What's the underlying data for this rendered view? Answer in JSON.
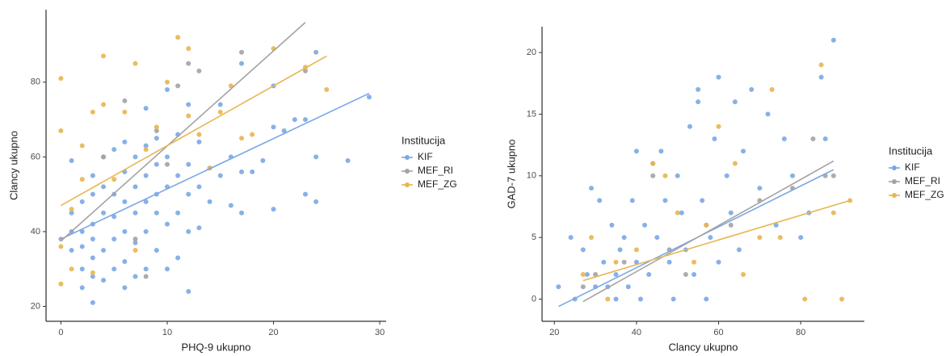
{
  "chart_data": [
    {
      "type": "scatter",
      "xlabel": "PHQ-9 ukupno",
      "ylabel": "Clancy ukupno",
      "legend_title": "Institucija",
      "legend": "right",
      "xlim": [
        -1.4,
        30.6
      ],
      "ylim": [
        16,
        99.4
      ],
      "xticks": [
        0,
        10,
        20,
        30
      ],
      "yticks": [
        20,
        40,
        60,
        80
      ],
      "series": [
        {
          "name": "KIF",
          "color": "#7ba7e6",
          "x": [
            1,
            1,
            1,
            1,
            2,
            2,
            2,
            2,
            2,
            3,
            3,
            3,
            3,
            3,
            3,
            3,
            4,
            4,
            4,
            4,
            4,
            5,
            5,
            5,
            5,
            5,
            6,
            6,
            6,
            6,
            6,
            6,
            7,
            7,
            7,
            7,
            7,
            8,
            8,
            8,
            8,
            8,
            8,
            9,
            9,
            9,
            9,
            9,
            10,
            10,
            10,
            10,
            10,
            11,
            11,
            11,
            11,
            12,
            12,
            12,
            12,
            12,
            13,
            13,
            13,
            14,
            14,
            15,
            15,
            16,
            16,
            17,
            17,
            17,
            18,
            19,
            20,
            20,
            20,
            21,
            22,
            23,
            23,
            24,
            24,
            24,
            27,
            29
          ],
          "values": [
            59,
            40,
            35,
            45,
            48,
            40,
            30,
            25,
            36,
            21,
            28,
            33,
            38,
            42,
            50,
            55,
            27,
            35,
            45,
            52,
            60,
            30,
            38,
            44,
            50,
            62,
            25,
            32,
            40,
            48,
            56,
            64,
            28,
            37,
            45,
            52,
            60,
            30,
            40,
            48,
            55,
            63,
            73,
            35,
            45,
            50,
            58,
            65,
            30,
            42,
            52,
            60,
            78,
            33,
            45,
            55,
            66,
            24,
            40,
            50,
            58,
            74,
            41,
            52,
            64,
            48,
            57,
            55,
            74,
            47,
            60,
            45,
            56,
            85,
            56,
            59,
            46,
            68,
            79,
            67,
            70,
            50,
            70,
            48,
            60,
            88,
            59,
            76
          ],
          "trend": {
            "x": [
              0,
              29
            ],
            "values": [
              38,
              77
            ]
          }
        },
        {
          "name": "MEF_RI",
          "color": "#a3a3a3",
          "x": [
            0,
            4,
            6,
            7,
            8,
            9,
            10,
            11,
            12,
            13,
            17,
            23
          ],
          "values": [
            38,
            60,
            75,
            38,
            28,
            67,
            58,
            79,
            85,
            83,
            88,
            83
          ],
          "trend": {
            "x": [
              0,
              23
            ],
            "values": [
              37.5,
              96
            ]
          }
        },
        {
          "name": "MEF_ZG",
          "color": "#e8b54f",
          "x": [
            0,
            0,
            0,
            0,
            1,
            1,
            2,
            2,
            3,
            3,
            4,
            4,
            5,
            6,
            7,
            7,
            8,
            9,
            10,
            11,
            12,
            12,
            13,
            14,
            15,
            16,
            17,
            18,
            20,
            23,
            25
          ],
          "values": [
            81,
            67,
            36,
            26,
            46,
            30,
            63,
            54,
            72,
            29,
            87,
            74,
            54,
            72,
            85,
            35,
            62,
            68,
            80,
            92,
            89,
            71,
            66,
            57,
            72,
            79,
            65,
            66,
            89,
            84,
            78
          ],
          "trend": {
            "x": [
              0,
              25
            ],
            "values": [
              47,
              87
            ]
          }
        }
      ]
    },
    {
      "type": "scatter",
      "xlabel": "Clancy ukupno",
      "ylabel": "GAD-7 ukupno",
      "legend_title": "Institucija",
      "legend": "right",
      "xlim": [
        17,
        95.5
      ],
      "ylim": [
        -1.8,
        22.1
      ],
      "xticks": [
        20,
        40,
        60,
        80
      ],
      "yticks": [
        0,
        5,
        10,
        15,
        20
      ],
      "series": [
        {
          "name": "KIF",
          "color": "#7ba7e6",
          "x": [
            21,
            24,
            25,
            27,
            28,
            29,
            30,
            31,
            32,
            33,
            34,
            35,
            35,
            36,
            37,
            38,
            39,
            40,
            40,
            41,
            42,
            43,
            44,
            45,
            46,
            47,
            48,
            49,
            50,
            51,
            52,
            53,
            54,
            55,
            55,
            56,
            57,
            58,
            59,
            60,
            60,
            62,
            63,
            64,
            65,
            66,
            68,
            70,
            72,
            74,
            76,
            78,
            80,
            82,
            85,
            86,
            88
          ],
          "values": [
            1,
            5,
            0,
            4,
            2,
            9,
            1,
            8,
            3,
            1,
            6,
            2,
            0,
            4,
            5,
            1,
            8,
            12,
            3,
            0,
            6,
            2,
            11,
            5,
            12,
            8,
            3,
            0,
            10,
            7,
            4,
            14,
            2,
            17,
            16,
            8,
            0,
            5,
            13,
            18,
            3,
            10,
            7,
            16,
            4,
            12,
            17,
            9,
            15,
            6,
            13,
            10,
            5,
            7,
            18,
            13,
            21
          ],
          "trend": {
            "x": [
              21,
              88
            ],
            "values": [
              -0.6,
              10.5
            ]
          }
        },
        {
          "name": "MEF_RI",
          "color": "#a3a3a3",
          "x": [
            27,
            30,
            37,
            44,
            48,
            52,
            57,
            63,
            70,
            78,
            83,
            86,
            88
          ],
          "values": [
            1,
            2,
            3,
            10,
            4,
            2,
            6,
            6,
            8,
            9,
            13,
            10,
            10
          ],
          "trend": {
            "x": [
              27,
              88
            ],
            "values": [
              -0.2,
              11.2
            ]
          }
        },
        {
          "name": "MEF_ZG",
          "color": "#e8b54f",
          "x": [
            27,
            29,
            33,
            35,
            40,
            44,
            47,
            50,
            54,
            57,
            60,
            64,
            66,
            70,
            73,
            75,
            81,
            85,
            88,
            90,
            92
          ],
          "values": [
            2,
            5,
            0,
            3,
            4,
            11,
            10,
            7,
            3,
            6,
            14,
            11,
            2,
            5,
            17,
            5,
            0,
            19,
            7,
            0,
            8
          ],
          "trend": {
            "x": [
              27,
              92
            ],
            "values": [
              1.5,
              8
            ]
          }
        }
      ]
    }
  ]
}
